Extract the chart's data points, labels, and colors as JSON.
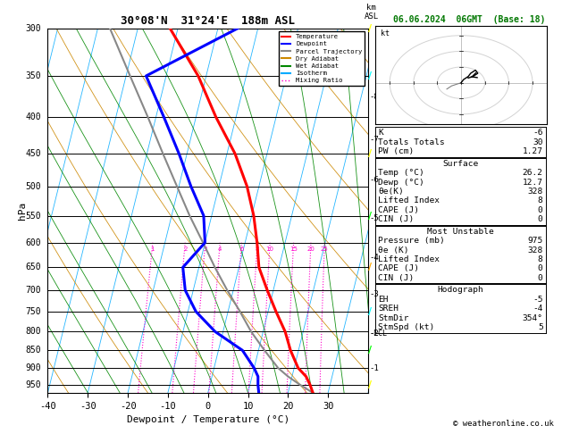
{
  "title_main": "30°08'N  31°24'E  188m ASL",
  "date_str": "06.06.2024  06GMT  (Base: 18)",
  "xlabel": "Dewpoint / Temperature (°C)",
  "pressure_ticks": [
    300,
    350,
    400,
    450,
    500,
    550,
    600,
    650,
    700,
    750,
    800,
    850,
    900,
    950
  ],
  "temp_ticks": [
    -40,
    -30,
    -20,
    -10,
    0,
    10,
    20,
    30
  ],
  "km_levels": [
    1,
    2,
    3,
    4,
    5,
    6,
    7,
    8
  ],
  "km_pressures": [
    900,
    805,
    710,
    630,
    555,
    490,
    430,
    375
  ],
  "lcl_pressure": 805,
  "mixing_ratio_values": [
    1,
    2,
    3,
    4,
    6,
    8,
    10,
    15,
    20,
    25
  ],
  "mixing_ratio_labels": [
    "1",
    "2",
    "3",
    "4",
    "6",
    "8",
    "10",
    "15",
    "20",
    "25"
  ],
  "temp_profile_pressure": [
    975,
    950,
    925,
    900,
    850,
    800,
    750,
    700,
    650,
    600,
    550,
    500,
    450,
    400,
    350,
    300
  ],
  "temp_profile_temp": [
    26.2,
    25.0,
    23.5,
    21.0,
    18.0,
    15.5,
    12.0,
    8.5,
    5.0,
    3.0,
    0.5,
    -3.0,
    -8.0,
    -15.0,
    -22.0,
    -32.0
  ],
  "dewp_profile_pressure": [
    975,
    950,
    925,
    900,
    850,
    800,
    750,
    700,
    650,
    600,
    550,
    500,
    450,
    400,
    350,
    300
  ],
  "dewp_profile_temp": [
    12.7,
    12.0,
    11.5,
    10.0,
    6.0,
    -2.0,
    -8.0,
    -12.0,
    -14.0,
    -10.0,
    -12.0,
    -17.0,
    -22.0,
    -28.0,
    -35.0,
    -15.0
  ],
  "parcel_profile_pressure": [
    975,
    950,
    925,
    900,
    850,
    800,
    750,
    700,
    650,
    600,
    550,
    500,
    450,
    400,
    350,
    300
  ],
  "parcel_profile_temp": [
    26.2,
    22.5,
    19.0,
    16.0,
    11.5,
    7.0,
    3.0,
    -1.5,
    -6.0,
    -10.5,
    -15.5,
    -20.5,
    -26.0,
    -32.0,
    -39.0,
    -47.0
  ],
  "temp_color": "#ff0000",
  "dewp_color": "#0000ff",
  "parcel_color": "#888888",
  "dry_adiabat_color": "#cc8800",
  "wet_adiabat_color": "#008800",
  "isotherm_color": "#00aaff",
  "mixing_ratio_color": "#ff00cc",
  "stats_items": [
    [
      "K",
      "-6"
    ],
    [
      "Totals Totals",
      "30"
    ],
    [
      "PW (cm)",
      "1.27"
    ]
  ],
  "surface_items": [
    [
      "Temp (°C)",
      "26.2"
    ],
    [
      "Dewp (°C)",
      "12.7"
    ],
    [
      "θe(K)",
      "328"
    ],
    [
      "Lifted Index",
      "8"
    ],
    [
      "CAPE (J)",
      "0"
    ],
    [
      "CIN (J)",
      "0"
    ]
  ],
  "unstable_items": [
    [
      "Pressure (mb)",
      "975"
    ],
    [
      "θe (K)",
      "328"
    ],
    [
      "Lifted Index",
      "8"
    ],
    [
      "CAPE (J)",
      "0"
    ],
    [
      "CIN (J)",
      "0"
    ]
  ],
  "hodograph_items": [
    [
      "EH",
      "-5"
    ],
    [
      "SREH",
      "-4"
    ],
    [
      "StmDir",
      "354°"
    ],
    [
      "StmSpd (kt)",
      "5"
    ]
  ],
  "copyright": "© weatheronline.co.uk",
  "legend_items": [
    [
      "Temperature",
      "#ff0000",
      "-"
    ],
    [
      "Dewpoint",
      "#0000ff",
      "-"
    ],
    [
      "Parcel Trajectory",
      "#888888",
      "-"
    ],
    [
      "Dry Adiabat",
      "#cc8800",
      "-"
    ],
    [
      "Wet Adiabat",
      "#008800",
      "-"
    ],
    [
      "Isotherm",
      "#00aaff",
      "-"
    ],
    [
      "Mixing Ratio",
      "#ff00cc",
      ":"
    ]
  ],
  "wind_barb_colors": [
    "#ffff00",
    "#00ff00",
    "#00ffff",
    "#ffaa00",
    "#00ff00",
    "#ffff00",
    "#00ffff",
    "#ffff00"
  ],
  "wind_barb_pressures": [
    950,
    850,
    750,
    650,
    550,
    450,
    350,
    300
  ]
}
